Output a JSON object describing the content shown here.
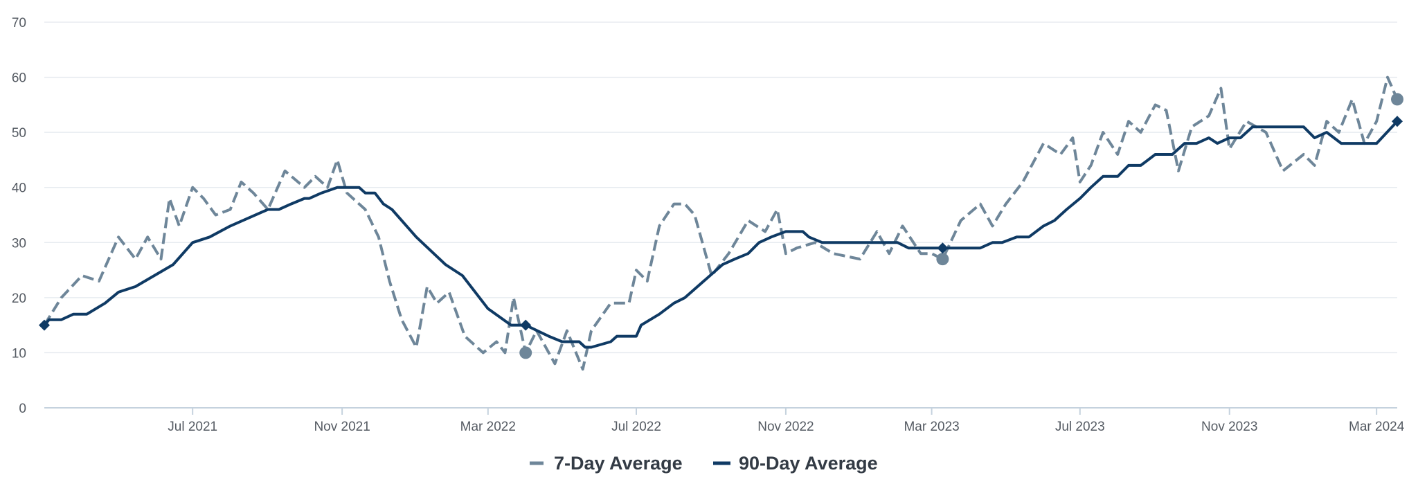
{
  "chart_data": {
    "type": "line",
    "title": "",
    "xlabel": "",
    "ylabel": "",
    "ylim": [
      0,
      70
    ],
    "yticks": [
      0,
      10,
      20,
      30,
      40,
      50,
      60,
      70
    ],
    "xlim": [
      "2021-03-01",
      "2024-03-18"
    ],
    "xticks": [
      {
        "date": "2021-07-01",
        "label": "Jul 2021"
      },
      {
        "date": "2021-11-01",
        "label": "Nov 2021"
      },
      {
        "date": "2022-03-01",
        "label": "Mar 2022"
      },
      {
        "date": "2022-07-01",
        "label": "Jul 2022"
      },
      {
        "date": "2022-11-01",
        "label": "Nov 2022"
      },
      {
        "date": "2023-03-01",
        "label": "Mar 2023"
      },
      {
        "date": "2023-07-01",
        "label": "Jul 2023"
      },
      {
        "date": "2023-11-01",
        "label": "Nov 2023"
      },
      {
        "date": "2024-03-01",
        "label": "Mar 2024"
      }
    ],
    "grid": true,
    "legend_position": "bottom-center",
    "series": [
      {
        "name": "7-Day Average",
        "color": "#6e8699",
        "dash": "dashed",
        "marker": "circle",
        "points": [
          [
            "2021-03-01",
            15
          ],
          [
            "2021-03-15",
            20
          ],
          [
            "2021-04-01",
            24
          ],
          [
            "2021-04-15",
            23
          ],
          [
            "2021-05-01",
            31
          ],
          [
            "2021-05-15",
            27
          ],
          [
            "2021-05-25",
            31
          ],
          [
            "2021-06-05",
            27
          ],
          [
            "2021-06-12",
            38
          ],
          [
            "2021-06-20",
            33
          ],
          [
            "2021-07-01",
            40
          ],
          [
            "2021-07-10",
            38
          ],
          [
            "2021-07-20",
            35
          ],
          [
            "2021-08-01",
            36
          ],
          [
            "2021-08-10",
            41
          ],
          [
            "2021-08-20",
            39
          ],
          [
            "2021-09-01",
            36
          ],
          [
            "2021-09-15",
            43
          ],
          [
            "2021-10-01",
            40
          ],
          [
            "2021-10-10",
            42
          ],
          [
            "2021-10-20",
            40
          ],
          [
            "2021-10-28",
            45
          ],
          [
            "2021-11-05",
            39
          ],
          [
            "2021-11-20",
            36
          ],
          [
            "2021-12-01",
            31
          ],
          [
            "2021-12-10",
            23
          ],
          [
            "2021-12-20",
            16
          ],
          [
            "2022-01-01",
            11
          ],
          [
            "2022-01-10",
            22
          ],
          [
            "2022-01-18",
            19
          ],
          [
            "2022-01-28",
            21
          ],
          [
            "2022-02-10",
            13
          ],
          [
            "2022-02-25",
            10
          ],
          [
            "2022-03-08",
            12
          ],
          [
            "2022-03-15",
            10
          ],
          [
            "2022-03-22",
            20
          ],
          [
            "2022-04-01",
            10
          ],
          [
            "2022-04-10",
            14
          ],
          [
            "2022-04-25",
            8
          ],
          [
            "2022-05-05",
            14
          ],
          [
            "2022-05-18",
            7
          ],
          [
            "2022-05-25",
            14
          ],
          [
            "2022-06-10",
            19
          ],
          [
            "2022-06-25",
            19
          ],
          [
            "2022-07-01",
            25
          ],
          [
            "2022-07-10",
            23
          ],
          [
            "2022-07-20",
            33
          ],
          [
            "2022-08-01",
            37
          ],
          [
            "2022-08-10",
            37
          ],
          [
            "2022-08-18",
            35
          ],
          [
            "2022-09-01",
            24
          ],
          [
            "2022-09-15",
            28
          ],
          [
            "2022-10-01",
            34
          ],
          [
            "2022-10-15",
            32
          ],
          [
            "2022-10-25",
            36
          ],
          [
            "2022-11-01",
            28
          ],
          [
            "2022-11-10",
            29
          ],
          [
            "2022-11-25",
            30
          ],
          [
            "2022-12-10",
            28
          ],
          [
            "2023-01-01",
            27
          ],
          [
            "2023-01-15",
            32
          ],
          [
            "2023-01-25",
            28
          ],
          [
            "2023-02-05",
            33
          ],
          [
            "2023-02-20",
            28
          ],
          [
            "2023-03-01",
            28
          ],
          [
            "2023-03-10",
            27
          ],
          [
            "2023-03-25",
            34
          ],
          [
            "2023-04-10",
            37
          ],
          [
            "2023-04-20",
            33
          ],
          [
            "2023-05-01",
            37
          ],
          [
            "2023-05-15",
            41
          ],
          [
            "2023-06-01",
            48
          ],
          [
            "2023-06-15",
            46
          ],
          [
            "2023-06-25",
            49
          ],
          [
            "2023-07-01",
            41
          ],
          [
            "2023-07-10",
            44
          ],
          [
            "2023-07-20",
            50
          ],
          [
            "2023-08-01",
            46
          ],
          [
            "2023-08-10",
            52
          ],
          [
            "2023-08-20",
            50
          ],
          [
            "2023-09-01",
            55
          ],
          [
            "2023-09-10",
            54
          ],
          [
            "2023-09-20",
            43
          ],
          [
            "2023-10-01",
            51
          ],
          [
            "2023-10-15",
            53
          ],
          [
            "2023-10-25",
            58
          ],
          [
            "2023-11-01",
            47
          ],
          [
            "2023-11-15",
            52
          ],
          [
            "2023-12-01",
            50
          ],
          [
            "2023-12-15",
            43
          ],
          [
            "2024-01-01",
            46
          ],
          [
            "2024-01-10",
            44
          ],
          [
            "2024-01-20",
            52
          ],
          [
            "2024-01-30",
            50
          ],
          [
            "2024-02-10",
            56
          ],
          [
            "2024-02-20",
            48
          ],
          [
            "2024-03-01",
            52
          ],
          [
            "2024-03-10",
            60
          ],
          [
            "2024-03-18",
            56
          ]
        ]
      },
      {
        "name": "90-Day Average",
        "color": "#0f3a64",
        "dash": "solid",
        "marker": "diamond",
        "points": [
          [
            "2021-03-01",
            15
          ],
          [
            "2021-03-05",
            16
          ],
          [
            "2021-03-15",
            16
          ],
          [
            "2021-03-25",
            17
          ],
          [
            "2021-04-05",
            17
          ],
          [
            "2021-04-20",
            19
          ],
          [
            "2021-05-01",
            21
          ],
          [
            "2021-05-15",
            22
          ],
          [
            "2021-06-15",
            26
          ],
          [
            "2021-07-01",
            30
          ],
          [
            "2021-07-15",
            31
          ],
          [
            "2021-08-01",
            33
          ],
          [
            "2021-09-01",
            36
          ],
          [
            "2021-09-10",
            36
          ],
          [
            "2021-09-20",
            37
          ],
          [
            "2021-10-01",
            38
          ],
          [
            "2021-10-05",
            38
          ],
          [
            "2021-10-15",
            39
          ],
          [
            "2021-10-28",
            40
          ],
          [
            "2021-11-05",
            40
          ],
          [
            "2021-11-15",
            40
          ],
          [
            "2021-11-20",
            39
          ],
          [
            "2021-11-28",
            39
          ],
          [
            "2021-12-05",
            37
          ],
          [
            "2021-12-12",
            36
          ],
          [
            "2022-01-01",
            31
          ],
          [
            "2022-01-25",
            26
          ],
          [
            "2022-02-08",
            24
          ],
          [
            "2022-03-01",
            18
          ],
          [
            "2022-03-20",
            15
          ],
          [
            "2022-04-01",
            15
          ],
          [
            "2022-04-20",
            13
          ],
          [
            "2022-05-01",
            12
          ],
          [
            "2022-05-15",
            12
          ],
          [
            "2022-05-20",
            11
          ],
          [
            "2022-05-25",
            11
          ],
          [
            "2022-06-10",
            12
          ],
          [
            "2022-06-15",
            13
          ],
          [
            "2022-07-01",
            13
          ],
          [
            "2022-07-05",
            15
          ],
          [
            "2022-07-20",
            17
          ],
          [
            "2022-08-01",
            19
          ],
          [
            "2022-08-10",
            20
          ],
          [
            "2022-09-10",
            26
          ],
          [
            "2022-09-20",
            27
          ],
          [
            "2022-10-01",
            28
          ],
          [
            "2022-10-10",
            30
          ],
          [
            "2022-10-20",
            31
          ],
          [
            "2022-11-01",
            32
          ],
          [
            "2022-11-15",
            32
          ],
          [
            "2022-11-20",
            31
          ],
          [
            "2022-12-01",
            30
          ],
          [
            "2022-12-15",
            30
          ],
          [
            "2023-01-01",
            30
          ],
          [
            "2023-02-01",
            30
          ],
          [
            "2023-02-10",
            29
          ],
          [
            "2023-03-01",
            29
          ],
          [
            "2023-03-20",
            29
          ],
          [
            "2023-04-01",
            29
          ],
          [
            "2023-04-10",
            29
          ],
          [
            "2023-04-20",
            30
          ],
          [
            "2023-04-28",
            30
          ],
          [
            "2023-05-10",
            31
          ],
          [
            "2023-05-20",
            31
          ],
          [
            "2023-06-01",
            33
          ],
          [
            "2023-06-10",
            34
          ],
          [
            "2023-06-20",
            36
          ],
          [
            "2023-07-01",
            38
          ],
          [
            "2023-07-10",
            40
          ],
          [
            "2023-07-20",
            42
          ],
          [
            "2023-08-01",
            42
          ],
          [
            "2023-08-10",
            44
          ],
          [
            "2023-08-20",
            44
          ],
          [
            "2023-09-01",
            46
          ],
          [
            "2023-09-15",
            46
          ],
          [
            "2023-09-25",
            48
          ],
          [
            "2023-10-05",
            48
          ],
          [
            "2023-10-15",
            49
          ],
          [
            "2023-10-22",
            48
          ],
          [
            "2023-11-01",
            49
          ],
          [
            "2023-11-10",
            49
          ],
          [
            "2023-11-20",
            51
          ],
          [
            "2023-12-01",
            51
          ],
          [
            "2023-12-20",
            51
          ],
          [
            "2024-01-01",
            51
          ],
          [
            "2024-01-10",
            49
          ],
          [
            "2024-01-20",
            50
          ],
          [
            "2024-02-01",
            48
          ],
          [
            "2024-02-20",
            48
          ],
          [
            "2024-03-01",
            48
          ],
          [
            "2024-03-18",
            52
          ]
        ]
      }
    ],
    "highlight_markers": [
      {
        "series": "7-Day Average",
        "date": "2022-04-01",
        "value": 10
      },
      {
        "series": "7-Day Average",
        "date": "2023-03-10",
        "value": 27
      },
      {
        "series": "7-Day Average",
        "date": "2024-03-18",
        "value": 56
      },
      {
        "series": "90-Day Average",
        "date": "2021-03-01",
        "value": 15
      },
      {
        "series": "90-Day Average",
        "date": "2022-04-01",
        "value": 15
      },
      {
        "series": "90-Day Average",
        "date": "2023-03-10",
        "value": 29
      },
      {
        "series": "90-Day Average",
        "date": "2024-03-18",
        "value": 52
      }
    ]
  },
  "legend": {
    "items": [
      {
        "label": "7-Day Average",
        "color": "#6e8699"
      },
      {
        "label": "90-Day Average",
        "color": "#0f3a64"
      }
    ]
  }
}
